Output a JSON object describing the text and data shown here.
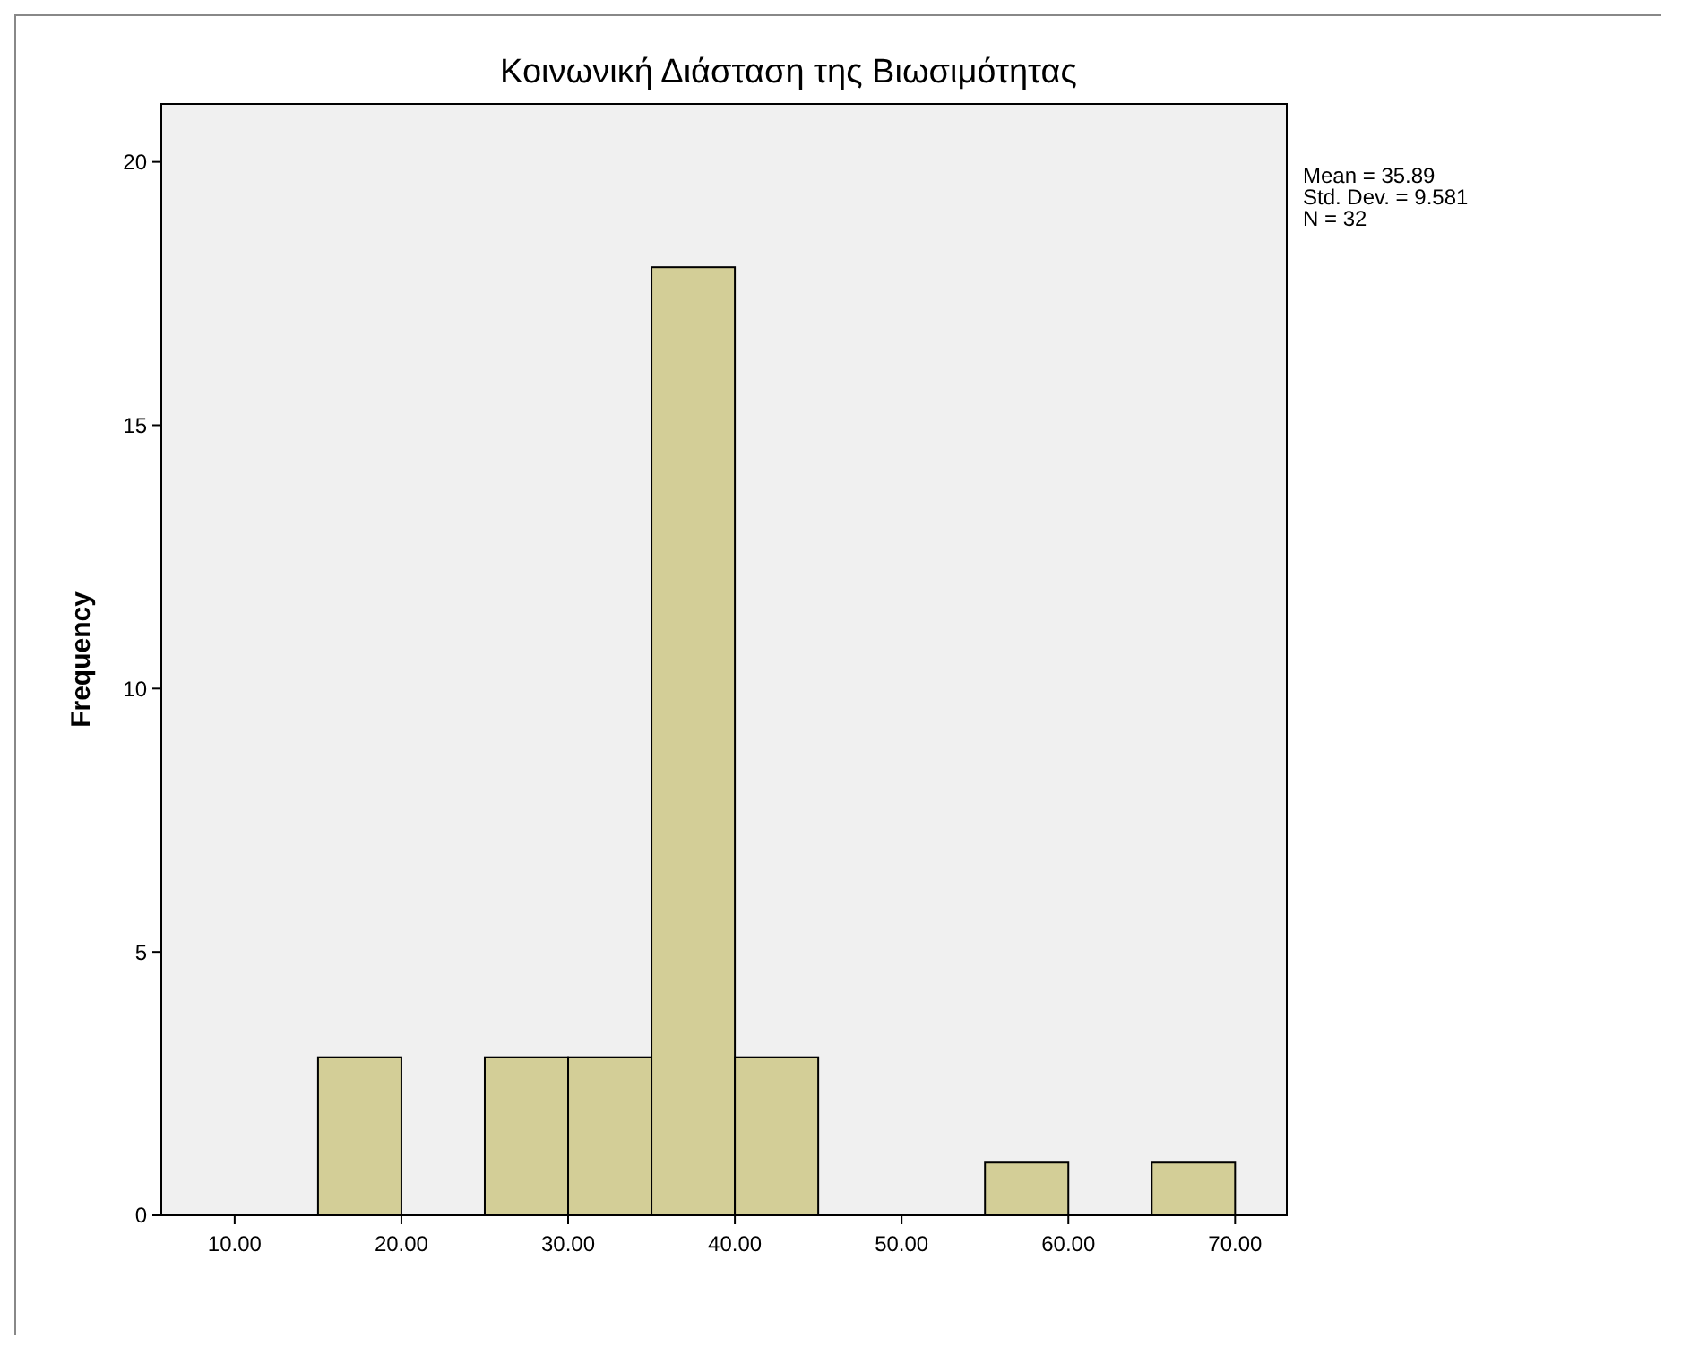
{
  "chart_data": {
    "type": "histogram",
    "title": "Κοινωνική Διάσταση της Βιωσιμότητας",
    "ylabel": "Frequency",
    "bins": [
      15,
      20,
      25,
      30,
      35,
      40,
      45,
      50,
      55,
      60,
      65,
      70
    ],
    "values": [
      3,
      0,
      3,
      3,
      18,
      3,
      0,
      0,
      1,
      0,
      1
    ],
    "color": "#d3ce97",
    "xlim": [
      5.6,
      73.1
    ],
    "ylim": [
      0,
      21.1
    ],
    "xticks": [
      {
        "value": 10,
        "label": "10.00"
      },
      {
        "value": 20,
        "label": "20.00"
      },
      {
        "value": 30,
        "label": "30.00"
      },
      {
        "value": 40,
        "label": "40.00"
      },
      {
        "value": 50,
        "label": "50.00"
      },
      {
        "value": 60,
        "label": "60.00"
      },
      {
        "value": 70,
        "label": "70.00"
      }
    ],
    "yticks": [
      0,
      5,
      10,
      15,
      20
    ],
    "grid": false,
    "annotations": [
      "Mean = 35.89",
      "Std. Dev. = 9.581",
      "N = 32"
    ]
  }
}
